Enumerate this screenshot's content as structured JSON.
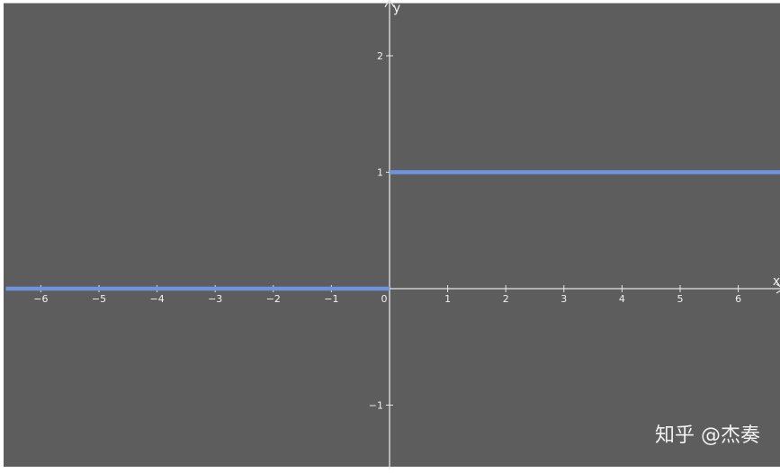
{
  "chart_data": {
    "type": "line",
    "title": "",
    "xlabel": "x",
    "ylabel": "y",
    "xlim": [
      -6.6,
      6.75
    ],
    "ylim": [
      -1.55,
      2.45
    ],
    "x_ticks": [
      -6,
      -5,
      -4,
      -3,
      -2,
      -1,
      0,
      1,
      2,
      3,
      4,
      5,
      6
    ],
    "y_ticks": [
      -1,
      1,
      2
    ],
    "x_tick_labels": [
      "−6",
      "−5",
      "−4",
      "−3",
      "−2",
      "−1",
      "0",
      "1",
      "2",
      "3",
      "4",
      "5",
      "6"
    ],
    "y_tick_labels": [
      "−1",
      "1",
      "2"
    ],
    "grid": false,
    "series": [
      {
        "segments": [
          {
            "x": [
              -6.6,
              0
            ],
            "y": [
              0,
              0
            ]
          },
          {
            "x": [
              0,
              6.75
            ],
            "y": [
              1,
              1
            ]
          }
        ]
      }
    ],
    "colors": {
      "background": "#5d5d5d",
      "axis": "#e6e6e6",
      "series": "#6f93df",
      "text": "#f2f2f2",
      "frame": "#ffffff"
    },
    "watermark": "知乎 @杰奏"
  }
}
